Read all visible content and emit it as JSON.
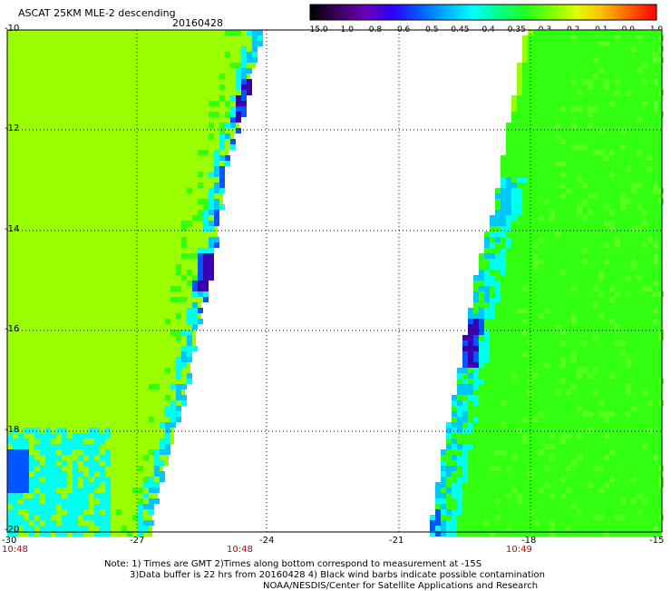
{
  "header": {
    "title": "ASCAT 25KM MLE-2 descending",
    "date": "20160428"
  },
  "colorbar": {
    "labels": [
      "-15.0",
      "-1.0",
      "-0.8",
      "-0.6",
      "-0.5",
      "-0.45",
      "-0.4",
      "-0.35",
      "-0.3",
      "-0.2",
      "-0.1",
      "0.0",
      "1.0"
    ],
    "colors": [
      "#000000",
      "#3a0060",
      "#6a00b8",
      "#2a00ff",
      "#0050ff",
      "#00a8ff",
      "#00f0ff",
      "#00ffa0",
      "#00ff40",
      "#40ff00",
      "#a0ff00",
      "#ffff00",
      "#ffa000",
      "#ff4000",
      "#ff0000"
    ]
  },
  "map": {
    "lat_labels": [
      "-10",
      "-12",
      "-14",
      "-16",
      "-18",
      "-20"
    ],
    "lon_labels": [
      "-30",
      "-27",
      "-24",
      "-21",
      "-18",
      "-15"
    ],
    "swath_times": {
      "left_start": "10:48",
      "left_end": "10:48",
      "right_end": "10:49"
    },
    "field_colors": {
      "lime": "#99ff00",
      "green": "#33ff11",
      "cyan": "#00ffee",
      "blue": "#0055ff",
      "purple": "#3a00b0"
    }
  },
  "footer": {
    "line1": "Note: 1) Times are GMT 2)Times along bottom correspond to measurement at -15S",
    "line2": "3)Data buffer is 22 hrs from 20160428 4) Black wind barbs indicate possible contamination",
    "line3": "NOAA/NESDIS/Center for Satellite Applications and Research"
  }
}
